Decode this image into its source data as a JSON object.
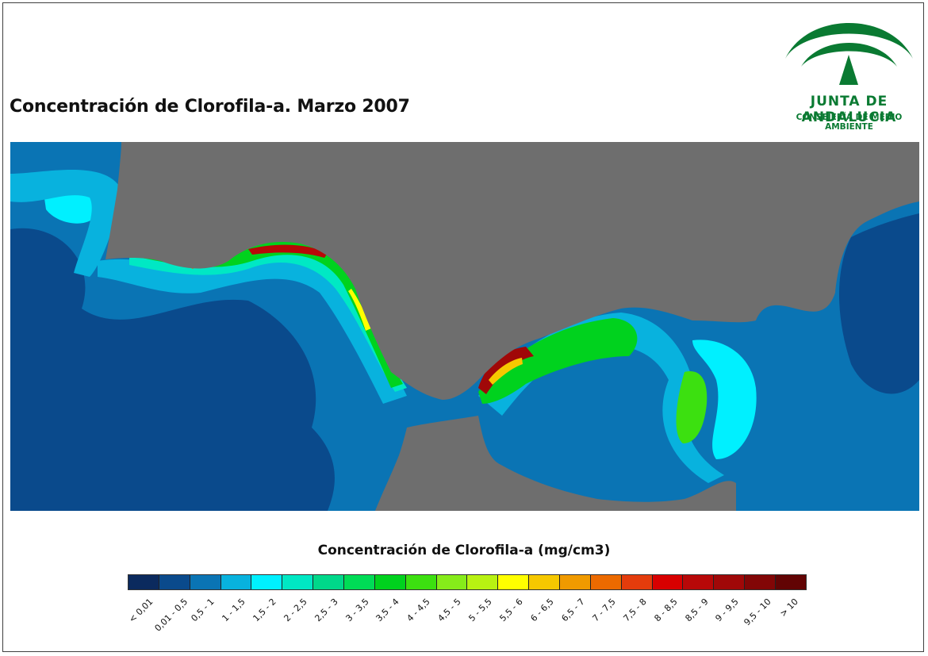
{
  "title": "Concentración de Clorofila-a. Marzo 2007",
  "logo": {
    "name": "JUNTA DE ANDALUCIA",
    "department": "CONSEJERÍA DE MEDIO AMBIENTE",
    "color": "#0a7a32"
  },
  "legend": {
    "title": "Concentración de Clorofila-a (mg/cm3)",
    "classes": [
      {
        "label": "< 0,01",
        "color": "#0b2a5e"
      },
      {
        "label": "0,01 - 0,5",
        "color": "#0a4a8c"
      },
      {
        "label": "0,5 - 1",
        "color": "#0a74b4"
      },
      {
        "label": "1 - 1,5",
        "color": "#08b2de"
      },
      {
        "label": "1,5 - 2",
        "color": "#00f0ff"
      },
      {
        "label": "2 - 2,5",
        "color": "#00e8c4"
      },
      {
        "label": "2,5 - 3",
        "color": "#00d88a"
      },
      {
        "label": "3 - 3,5",
        "color": "#00dc56"
      },
      {
        "label": "3,5 - 4",
        "color": "#00d21e"
      },
      {
        "label": "4 - 4,5",
        "color": "#3ce010"
      },
      {
        "label": "4,5 - 5",
        "color": "#86ec1a"
      },
      {
        "label": "5 - 5,5",
        "color": "#b8f212"
      },
      {
        "label": "5,5 - 6",
        "color": "#ffff00"
      },
      {
        "label": "6 - 6,5",
        "color": "#f6c800"
      },
      {
        "label": "6,5 - 7",
        "color": "#f09a00"
      },
      {
        "label": "7 - 7,5",
        "color": "#ec6a00"
      },
      {
        "label": "7,5 - 8",
        "color": "#e43c0c"
      },
      {
        "label": "8 - 8,5",
        "color": "#d80000"
      },
      {
        "label": "8,5 - 9",
        "color": "#b80808"
      },
      {
        "label": "9 - 9,5",
        "color": "#a00808"
      },
      {
        "label": "9,5 - 10",
        "color": "#820606"
      },
      {
        "label": "> 10",
        "color": "#620404"
      }
    ]
  },
  "map_colors": {
    "land": "#6e6e6e",
    "open_sea": "#0a4a8c",
    "shelf": "#0a74b4"
  }
}
